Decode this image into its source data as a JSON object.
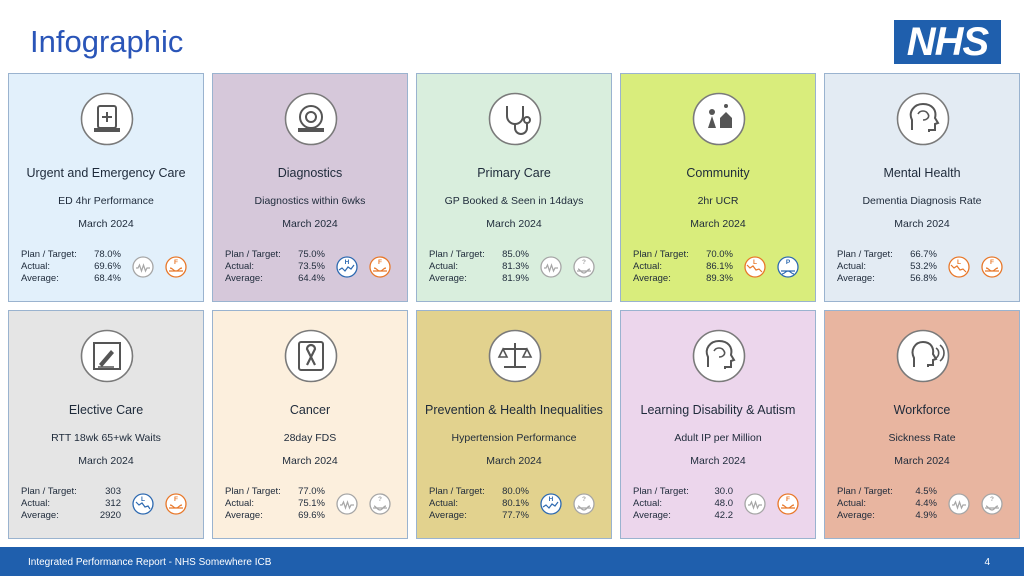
{
  "header": {
    "title": "Infographic",
    "logo_text": "NHS"
  },
  "cards": [
    {
      "name": "Urgent and Emergency Care",
      "metric": "ED 4hr Performance",
      "period": "March 2024",
      "plan_label": "Plan / Target:",
      "plan": "78.0%",
      "actual_label": "Actual:",
      "actual": "69.6%",
      "average_label": "Average:",
      "average": "68.4%",
      "bg": "#e2f0fb",
      "icon": "alarm-icon",
      "badge1": "variation-common-cause-icon",
      "badge2": "assurance-fail-icon"
    },
    {
      "name": "Diagnostics",
      "metric": "Diagnostics within 6wks",
      "period": "March 2024",
      "plan_label": "Plan / Target:",
      "plan": "75.0%",
      "actual_label": "Actual:",
      "actual": "73.5%",
      "average_label": "Average:",
      "average": "64.4%",
      "bg": "#d6c8da",
      "icon": "mri-scanner-icon",
      "badge1": "variation-improving-high-icon",
      "badge2": "assurance-fail-icon"
    },
    {
      "name": "Primary Care",
      "metric": "GP Booked & Seen in 14days",
      "period": "March 2024",
      "plan_label": "Plan / Target:",
      "plan": "85.0%",
      "actual_label": "Actual:",
      "actual": "81.3%",
      "average_label": "Average:",
      "average": "81.9%",
      "bg": "#d9eedd",
      "icon": "stethoscope-icon",
      "badge1": "variation-common-cause-icon",
      "badge2": "assurance-inconsistent-icon"
    },
    {
      "name": "Community",
      "metric": "2hr UCR",
      "period": "March 2024",
      "plan_label": "Plan / Target:",
      "plan": "70.0%",
      "actual_label": "Actual:",
      "actual": "86.1%",
      "average_label": "Average:",
      "average": "89.3%",
      "bg": "#d9ed7c",
      "icon": "community-icon",
      "badge1": "variation-concern-low-icon",
      "badge2": "assurance-pass-icon"
    },
    {
      "name": "Mental Health",
      "metric": "Dementia Diagnosis Rate",
      "period": "March 2024",
      "plan_label": "Plan / Target:",
      "plan": "66.7%",
      "actual_label": "Actual:",
      "actual": "53.2%",
      "average_label": "Average:",
      "average": "56.8%",
      "bg": "#e3ebf3",
      "icon": "brain-head-icon",
      "badge1": "variation-concern-low-icon",
      "badge2": "assurance-fail-icon"
    },
    {
      "name": "Elective Care",
      "metric": "RTT 18wk 65+wk Waits",
      "period": "March 2024",
      "plan_label": "Plan / Target:",
      "plan": "303",
      "actual_label": "Actual:",
      "actual": "312",
      "average_label": "Average:",
      "average": "2920",
      "bg": "#e5e5e5",
      "icon": "surgical-scalpel-icon",
      "badge1": "variation-improving-low-icon",
      "badge2": "assurance-fail-icon"
    },
    {
      "name": "Cancer",
      "metric": "28day FDS",
      "period": "March 2024",
      "plan_label": "Plan / Target:",
      "plan": "77.0%",
      "actual_label": "Actual:",
      "actual": "75.1%",
      "average_label": "Average:",
      "average": "69.6%",
      "bg": "#fcefdd",
      "icon": "cancer-ribbon-icon",
      "badge1": "variation-common-cause-icon",
      "badge2": "assurance-inconsistent-icon"
    },
    {
      "name": "Prevention & Health Inequalities",
      "metric": "Hypertension Performance",
      "period": "March 2024",
      "plan_label": "Plan / Target:",
      "plan": "80.0%",
      "actual_label": "Actual:",
      "actual": "80.1%",
      "average_label": "Average:",
      "average": "77.7%",
      "bg": "#e2d28e",
      "icon": "scales-icon",
      "badge1": "variation-improving-high-icon",
      "badge2": "assurance-inconsistent-icon"
    },
    {
      "name": "Learning Disability & Autism",
      "metric": "Adult IP per Million",
      "period": "March 2024",
      "plan_label": "Plan / Target:",
      "plan": "30.0",
      "actual_label": "Actual:",
      "actual": "48.0",
      "average_label": "Average:",
      "average": "42.2",
      "bg": "#ecd6ec",
      "icon": "brain-head-icon",
      "badge1": "variation-common-cause-icon",
      "badge2": "assurance-fail-icon"
    },
    {
      "name": "Workforce",
      "metric": "Sickness Rate",
      "period": "March 2024",
      "plan_label": "Plan / Target:",
      "plan": "4.5%",
      "actual_label": "Actual:",
      "actual": "4.4%",
      "average_label": "Average:",
      "average": "4.9%",
      "bg": "#e8b5a0",
      "icon": "speaking-head-icon",
      "badge1": "variation-common-cause-icon",
      "badge2": "assurance-inconsistent-icon"
    }
  ],
  "badge_letters": {
    "high": "H",
    "low": "L",
    "fail": "F",
    "pass": "P",
    "inconsistent": "?"
  },
  "colors": {
    "orange": "#e8782a",
    "blue": "#2e6ab1",
    "grey": "#a6a6a6",
    "icon": "#555555"
  },
  "footer": {
    "text": "Integrated Performance Report - NHS Somewhere ICB",
    "page": "4"
  }
}
